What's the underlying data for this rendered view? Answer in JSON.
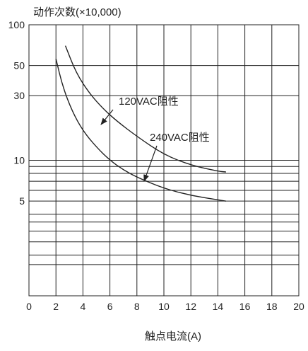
{
  "chart_data": {
    "type": "line",
    "title": "",
    "ylabel": "动作次数(×10,000)",
    "xlabel": "触点电流(A)",
    "xlim": [
      0,
      20
    ],
    "ylim": [
      1,
      100
    ],
    "yscale": "log",
    "grid": true,
    "x_ticks": [
      "0",
      "2",
      "4",
      "6",
      "8",
      "10",
      "12",
      "14",
      "16",
      "18",
      "20"
    ],
    "y_ticks": [
      {
        "value": 100,
        "label": "100"
      },
      {
        "value": 50,
        "label": "50"
      },
      {
        "value": 30,
        "label": "30"
      },
      {
        "value": 10,
        "label": "10"
      },
      {
        "value": 5,
        "label": "5"
      }
    ],
    "y_grid": [
      100,
      50,
      30,
      10,
      9,
      8,
      7,
      6,
      5,
      4,
      3.5,
      3,
      2.5,
      2,
      1.7
    ],
    "series": [
      {
        "name": "120VAC阻性",
        "x": [
          2.7,
          3.5,
          4.5,
          5.5,
          6.5,
          8,
          10,
          12,
          14,
          14.6
        ],
        "y": [
          70,
          44,
          31,
          24,
          19.5,
          15,
          11,
          9.2,
          8.3,
          8.2
        ]
      },
      {
        "name": "240VAC阻性",
        "x": [
          2.0,
          2.5,
          3.2,
          4,
          5,
          6,
          7,
          8,
          10,
          12,
          14,
          14.6
        ],
        "y": [
          56,
          35,
          23,
          16.5,
          12.5,
          10,
          8.5,
          7.5,
          6.2,
          5.5,
          5.1,
          5.0
        ]
      }
    ],
    "annotations": [
      {
        "text": "120VAC阻性",
        "series": "120VAC阻性"
      },
      {
        "text": "240VAC阻性",
        "series": "240VAC阻性"
      }
    ]
  }
}
